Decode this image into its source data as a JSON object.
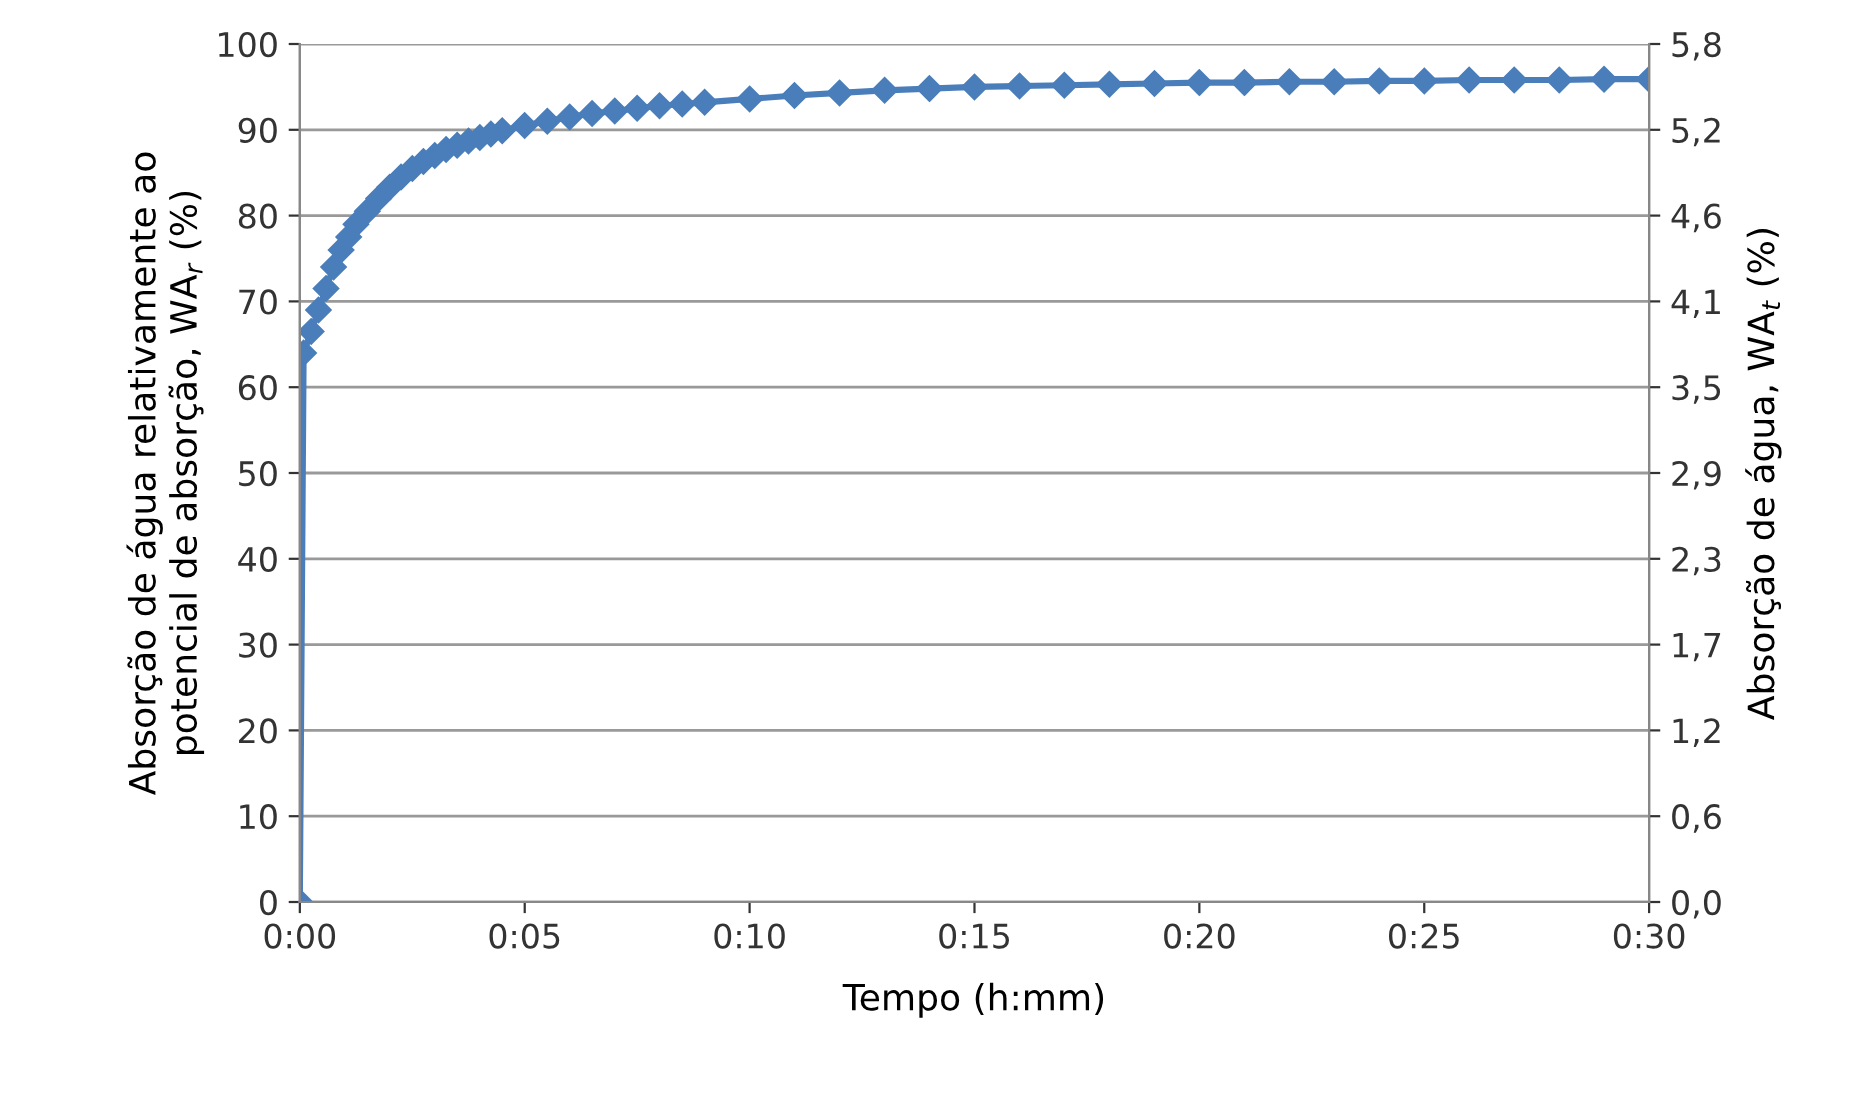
{
  "chart_data": {
    "type": "line",
    "xlabel": "Tempo (h:mm)",
    "ylabel": "Absorção de água relativamente ao\npotencial de absorção, WA$_{r}$ (%)",
    "y2label": "Absorção de água, WA$_{t}$ (%)",
    "x": [
      0,
      0.0014,
      0.0042,
      0.0069,
      0.0097,
      0.0125,
      0.0153,
      0.0181,
      0.0208,
      0.025,
      0.0292,
      0.0333,
      0.0375,
      0.0417,
      0.0458,
      0.05,
      0.0542,
      0.0583,
      0.0625,
      0.0667,
      0.0708,
      0.075,
      0.0833,
      0.0917,
      0.1,
      0.1083,
      0.1167,
      0.125,
      0.1333,
      0.1417,
      0.15,
      0.1667,
      0.1833,
      0.2,
      0.2167,
      0.2333,
      0.25,
      0.2667,
      0.2833,
      0.3,
      0.3167,
      0.3333,
      0.35,
      0.3667,
      0.3833,
      0.4,
      0.4167,
      0.4333,
      0.45,
      0.4667,
      0.4833,
      0.5
    ],
    "series": [
      {
        "color": "#4a7ebb",
        "values": [
          0,
          64,
          66.5,
          69,
          71.5,
          74,
          76,
          77.5,
          79,
          80.5,
          82,
          83.3,
          84.5,
          85.5,
          86.3,
          87,
          87.7,
          88.2,
          88.7,
          89.1,
          89.5,
          89.9,
          90.5,
          91,
          91.5,
          91.9,
          92.2,
          92.5,
          92.8,
          93,
          93.2,
          93.6,
          94,
          94.3,
          94.6,
          94.8,
          95,
          95.1,
          95.2,
          95.3,
          95.4,
          95.5,
          95.5,
          95.6,
          95.6,
          95.7,
          95.7,
          95.8,
          95.8,
          95.8,
          95.9,
          95.9
        ]
      }
    ],
    "xlim": [
      0,
      0.5
    ],
    "xticks": [
      {
        "value": 0,
        "label": "0:00"
      },
      {
        "value": 0.083333,
        "label": "0:05"
      },
      {
        "value": 0.166667,
        "label": "0:10"
      },
      {
        "value": 0.25,
        "label": "0:15"
      },
      {
        "value": 0.333333,
        "label": "0:20"
      },
      {
        "value": 0.416667,
        "label": "0:25"
      },
      {
        "value": 0.5,
        "label": "0:30"
      }
    ],
    "ylim": [
      0,
      100
    ],
    "yticks": [
      0,
      10,
      20,
      30,
      40,
      50,
      60,
      70,
      80,
      90,
      100
    ],
    "y2lim": [
      0,
      5.8
    ],
    "y2ticks": [
      {
        "value": 0,
        "label": "0,0"
      },
      {
        "value": 0.58,
        "label": "0,6"
      },
      {
        "value": 1.16,
        "label": "1,2"
      },
      {
        "value": 1.74,
        "label": "1,7"
      },
      {
        "value": 2.32,
        "label": "2,3"
      },
      {
        "value": 2.9,
        "label": "2,9"
      },
      {
        "value": 3.48,
        "label": "3,5"
      },
      {
        "value": 4.06,
        "label": "4,1"
      },
      {
        "value": 4.64,
        "label": "4,6"
      },
      {
        "value": 5.22,
        "label": "5,2"
      },
      {
        "value": 5.8,
        "label": "5,8"
      }
    ],
    "grid": "y",
    "marker": "diamond",
    "line_style": "solid"
  }
}
